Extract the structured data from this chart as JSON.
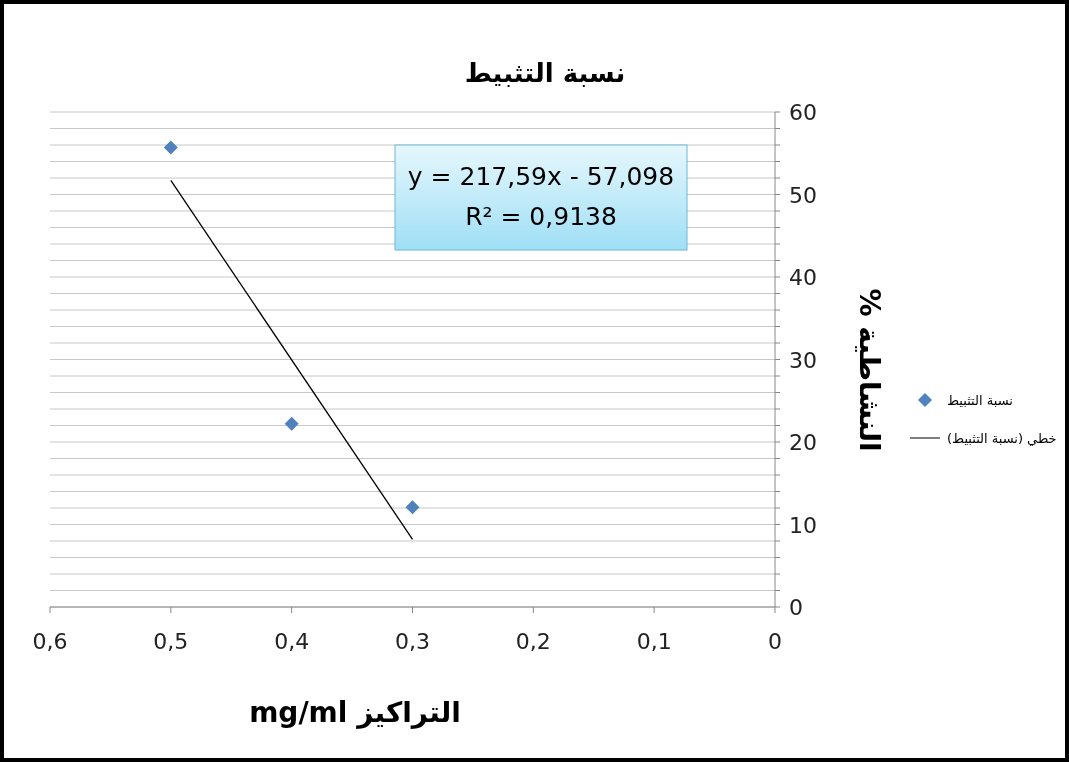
{
  "chart_data": {
    "type": "scatter",
    "title": "نسبة التثبيط",
    "xlabel": "التراكيز mg/ml",
    "ylabel": "النشاطية %",
    "xlim": [
      0.6,
      0
    ],
    "xticks": [
      {
        "value": 0.6,
        "label": "0,6"
      },
      {
        "value": 0.5,
        "label": "0,5"
      },
      {
        "value": 0.4,
        "label": "0,4"
      },
      {
        "value": 0.3,
        "label": "0,3"
      },
      {
        "value": 0.2,
        "label": "0,2"
      },
      {
        "value": 0.1,
        "label": "0,1"
      },
      0
    ],
    "ylim": [
      0,
      60
    ],
    "yticks": [
      0,
      {
        "value": 2,
        "label": null
      },
      {
        "value": 4,
        "label": null
      },
      {
        "value": 6,
        "label": null
      },
      {
        "value": 8,
        "label": null
      },
      10,
      {
        "value": 12,
        "label": null
      },
      {
        "value": 14,
        "label": null
      },
      {
        "value": 16,
        "label": null
      },
      {
        "value": 18,
        "label": null
      },
      20,
      {
        "value": 22,
        "label": null
      },
      {
        "value": 24,
        "label": null
      },
      {
        "value": 26,
        "label": null
      },
      {
        "value": 28,
        "label": null
      },
      30,
      {
        "value": 32,
        "label": null
      },
      {
        "value": 34,
        "label": null
      },
      {
        "value": 36,
        "label": null
      },
      {
        "value": 38,
        "label": null
      },
      40,
      {
        "value": 42,
        "label": null
      },
      {
        "value": 44,
        "label": null
      },
      {
        "value": 46,
        "label": null
      },
      {
        "value": 48,
        "label": null
      },
      50,
      {
        "value": 52,
        "label": null
      },
      {
        "value": 54,
        "label": null
      },
      {
        "value": 56,
        "label": null
      },
      {
        "value": 58,
        "label": null
      },
      60
    ],
    "grid": "y",
    "legend": "right",
    "series": [
      {
        "name": "نسبة التثبيط",
        "type": "scatter",
        "marker": "diamond",
        "color": "#4f81bd",
        "x": [
          0.5,
          0.4,
          0.3
        ],
        "values": [
          55.7,
          22.2,
          12.1
        ]
      },
      {
        "name": "خطي (نسبة التثبيط)",
        "type": "line",
        "line_style": "solid",
        "color": "#000000",
        "x": [
          0.5,
          0.3
        ],
        "values": [
          51.7,
          8.2
        ]
      }
    ],
    "annotations": [
      "y = 217,59x - 57,098",
      "R² = 0,9138"
    ]
  }
}
